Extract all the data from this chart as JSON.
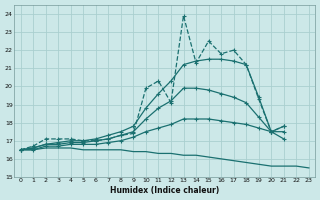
{
  "xlabel": "Humidex (Indice chaleur)",
  "xlim": [
    -0.5,
    23.5
  ],
  "ylim": [
    15,
    24.5
  ],
  "yticks": [
    15,
    16,
    17,
    18,
    19,
    20,
    21,
    22,
    23,
    24
  ],
  "xticks": [
    0,
    1,
    2,
    3,
    4,
    5,
    6,
    7,
    8,
    9,
    10,
    11,
    12,
    13,
    14,
    15,
    16,
    17,
    18,
    19,
    20,
    21,
    22,
    23
  ],
  "bg_color": "#cce8e8",
  "grid_color": "#aacfcf",
  "line_color": "#1a7070",
  "lines": [
    {
      "x": [
        0,
        1,
        2,
        3,
        4,
        5,
        6,
        7,
        8,
        9,
        10,
        11,
        12,
        13,
        14,
        15,
        16,
        17,
        18,
        19,
        20,
        21
      ],
      "y": [
        16.5,
        16.7,
        17.1,
        17.1,
        17.1,
        17.0,
        17.0,
        17.1,
        17.3,
        17.4,
        19.9,
        20.3,
        19.1,
        23.9,
        21.3,
        22.5,
        21.8,
        22.0,
        21.2,
        19.3,
        17.5,
        17.8
      ],
      "dashed": true,
      "marker": true,
      "lw": 0.9
    },
    {
      "x": [
        0,
        1,
        2,
        3,
        4,
        5,
        6,
        7,
        8,
        9,
        10,
        11,
        12,
        13,
        14,
        15,
        16,
        17,
        18,
        19,
        20,
        21
      ],
      "y": [
        16.5,
        16.6,
        16.8,
        16.9,
        17.0,
        17.0,
        17.1,
        17.3,
        17.5,
        17.8,
        18.8,
        19.6,
        20.3,
        21.2,
        21.4,
        21.5,
        21.5,
        21.4,
        21.2,
        19.4,
        17.5,
        17.8
      ],
      "dashed": false,
      "marker": true,
      "lw": 0.9
    },
    {
      "x": [
        0,
        1,
        2,
        3,
        4,
        5,
        6,
        7,
        8,
        9,
        10,
        11,
        12,
        13,
        14,
        15,
        16,
        17,
        18,
        19,
        20,
        21
      ],
      "y": [
        16.5,
        16.6,
        16.8,
        16.8,
        16.9,
        16.9,
        17.0,
        17.1,
        17.3,
        17.5,
        18.2,
        18.8,
        19.2,
        19.9,
        19.9,
        19.8,
        19.6,
        19.4,
        19.1,
        18.3,
        17.5,
        17.5
      ],
      "dashed": false,
      "marker": true,
      "lw": 0.9
    },
    {
      "x": [
        0,
        1,
        2,
        3,
        4,
        5,
        6,
        7,
        8,
        9,
        10,
        11,
        12,
        13,
        14,
        15,
        16,
        17,
        18,
        19,
        20,
        21
      ],
      "y": [
        16.5,
        16.5,
        16.7,
        16.7,
        16.8,
        16.8,
        16.8,
        16.9,
        17.0,
        17.2,
        17.5,
        17.7,
        17.9,
        18.2,
        18.2,
        18.2,
        18.1,
        18.0,
        17.9,
        17.7,
        17.5,
        17.1
      ],
      "dashed": false,
      "marker": true,
      "lw": 0.9
    },
    {
      "x": [
        0,
        1,
        2,
        3,
        4,
        5,
        6,
        7,
        8,
        9,
        10,
        11,
        12,
        13,
        14,
        15,
        16,
        17,
        18,
        19,
        20,
        21,
        22,
        23
      ],
      "y": [
        16.5,
        16.5,
        16.6,
        16.6,
        16.6,
        16.5,
        16.5,
        16.5,
        16.5,
        16.4,
        16.4,
        16.3,
        16.3,
        16.2,
        16.2,
        16.1,
        16.0,
        15.9,
        15.8,
        15.7,
        15.6,
        15.6,
        15.6,
        15.5
      ],
      "dashed": false,
      "marker": false,
      "lw": 0.9
    }
  ]
}
